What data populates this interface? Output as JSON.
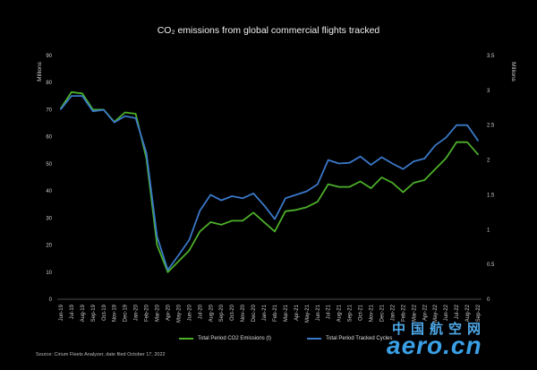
{
  "title": "CO₂ emissions from global commercial flights tracked",
  "source": "Source: Cirium Fleets Analyzer, date filed October 17, 2022",
  "watermark": {
    "cn": "中国航空网",
    "en": "aero.cn"
  },
  "chart_data": {
    "type": "line",
    "title": "CO₂ emissions from global commercial flights tracked",
    "y_left": {
      "label": "Millions",
      "range": [
        0,
        90
      ],
      "ticks": [
        0,
        10,
        20,
        30,
        40,
        50,
        60,
        70,
        80,
        90
      ]
    },
    "y_right": {
      "label": "Millions",
      "range": [
        0,
        3.5
      ],
      "ticks": [
        "0",
        "0.5",
        "1",
        "1.5",
        "2",
        "2.5",
        "3",
        "3.5"
      ],
      "tick_values": [
        0,
        0.5,
        1,
        1.5,
        2,
        2.5,
        3,
        3.5
      ]
    },
    "grid": false,
    "legend_position": "bottom",
    "x": [
      "Jun-19",
      "Jul-19",
      "Aug-19",
      "Sep-19",
      "Oct-19",
      "Nov-19",
      "Dec-19",
      "Jan-20",
      "Feb-20",
      "Mar-20",
      "Apr-20",
      "May-20",
      "Jun-20",
      "Jul-20",
      "Aug-20",
      "Sep-20",
      "Oct-20",
      "Nov-20",
      "Dec-20",
      "Jan-21",
      "Feb-21",
      "Mar-21",
      "Apr-21",
      "May-21",
      "Jun-21",
      "Jul-21",
      "Aug-21",
      "Sep-21",
      "Oct-21",
      "Nov-21",
      "Dec-21",
      "Jan-22",
      "Feb-22",
      "Mar-22",
      "Apr-22",
      "May-22",
      "Jun-22",
      "Jul-22",
      "Aug-22",
      "Sep-22"
    ],
    "series": [
      {
        "name": "Total Period CO2 Emissions (t)",
        "axis": "left",
        "color": "#4caf2a",
        "values": [
          70.5,
          76.5,
          76,
          70,
          70,
          65.5,
          69,
          68.5,
          52,
          20,
          10,
          14,
          18,
          25,
          28.5,
          27.5,
          29,
          29,
          32,
          28.5,
          25,
          32.5,
          33,
          34,
          36,
          42.5,
          41.5,
          41.5,
          43.5,
          41,
          45,
          43,
          39.5,
          43,
          44,
          48,
          52,
          58,
          58,
          53.5
        ]
      },
      {
        "name": "Total Period Tracked Cycles",
        "axis": "right",
        "color": "#3a78c8",
        "values": [
          2.73,
          2.92,
          2.92,
          2.7,
          2.72,
          2.54,
          2.63,
          2.6,
          2.1,
          0.9,
          0.42,
          0.63,
          0.85,
          1.27,
          1.5,
          1.42,
          1.48,
          1.45,
          1.52,
          1.35,
          1.15,
          1.45,
          1.5,
          1.55,
          1.65,
          2.0,
          1.95,
          1.96,
          2.05,
          1.93,
          2.04,
          1.95,
          1.87,
          1.98,
          2.02,
          2.21,
          2.32,
          2.5,
          2.5,
          2.28
        ]
      }
    ]
  }
}
